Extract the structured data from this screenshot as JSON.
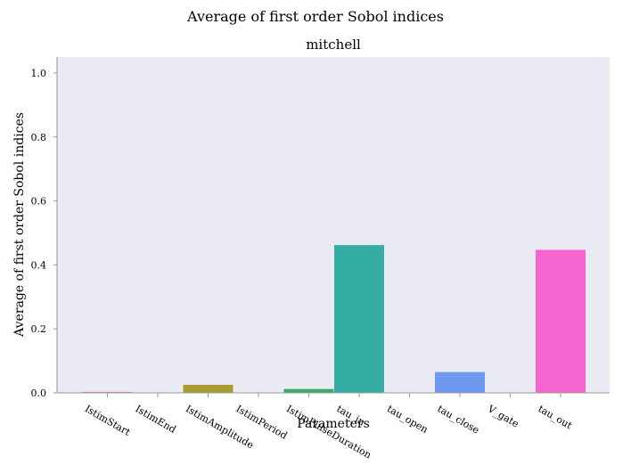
{
  "chart_data": {
    "type": "bar",
    "suptitle": "Average of first order Sobol indices",
    "title": "mitchell",
    "xlabel": "Parameters",
    "ylabel": "Average of first order Sobol indices",
    "categories": [
      "IstimStart",
      "IstimEnd",
      "IstimAmplitude",
      "IstimPeriod",
      "IstimPulseDuration",
      "tau_in",
      "tau_open",
      "tau_close",
      "V_gate",
      "tau_out"
    ],
    "values": [
      0.003,
      0.0,
      0.025,
      0.0,
      0.012,
      0.462,
      0.0,
      0.065,
      0.0,
      0.447
    ],
    "colors": [
      "#d98a95",
      "#c49a3c",
      "#a89b30",
      "#6fa042",
      "#3aa86b",
      "#36ada4",
      "#3a9fc4",
      "#6f98f0",
      "#b88af0",
      "#f565d0"
    ],
    "ylim": [
      0,
      1.05
    ],
    "yticks": [
      "0.0",
      "0.2",
      "0.4",
      "0.6",
      "0.8",
      "1.0"
    ],
    "ytick_values": [
      0,
      0.2,
      0.4,
      0.6,
      0.8,
      1.0
    ],
    "background": "#eaeaf2",
    "grid": false,
    "legend": "none"
  }
}
